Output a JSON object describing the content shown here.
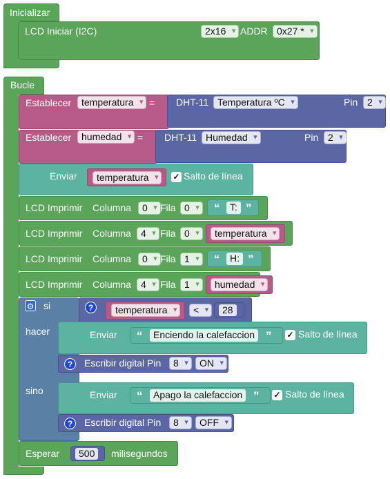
{
  "init": {
    "label": "Inicializar"
  },
  "lcd_init": {
    "label": "LCD Iniciar (I2C)",
    "size": "2x16",
    "addr_label": "ADDR",
    "addr": "0x27 *"
  },
  "loop": {
    "label": "Bucle"
  },
  "set_temp": {
    "label": "Establecer",
    "var": "temperatura",
    "eq": "=",
    "sensor": "DHT-11",
    "mode": "Temperatura ºC",
    "pin_label": "Pin",
    "pin": "2"
  },
  "set_hum": {
    "label": "Establecer",
    "var": "humedad",
    "eq": "=",
    "sensor": "DHT-11",
    "mode": "Humedad",
    "pin_label": "Pin",
    "pin": "2"
  },
  "send1": {
    "label": "Enviar",
    "var": "temperatura",
    "newline_label": "Salto de línea",
    "check": "✓"
  },
  "lcd_prints": [
    {
      "label": "LCD Imprimir",
      "col_label": "Columna",
      "col": "0",
      "row_label": "Fila",
      "row": "0",
      "text": "T:"
    },
    {
      "label": "LCD Imprimir",
      "col_label": "Columna",
      "col": "4",
      "row_label": "Fila",
      "row": "0",
      "var": "temperatura"
    },
    {
      "label": "LCD Imprimir",
      "col_label": "Columna",
      "col": "0",
      "row_label": "Fila",
      "row": "1",
      "text": "H:"
    },
    {
      "label": "LCD Imprimir",
      "col_label": "Columna",
      "col": "4",
      "row_label": "Fila",
      "row": "1",
      "var": "humedad"
    }
  ],
  "if_block": {
    "si": "si",
    "hacer": "hacer",
    "sino": "sino",
    "cond_var": "temperatura",
    "op": "<",
    "value": "28",
    "send_then": {
      "label": "Enviar",
      "text": "Enciendo la calefaccion",
      "newline_label": "Salto de línea"
    },
    "write_then": {
      "label": "Escribir digital Pin",
      "pin": "8",
      "state": "ON"
    },
    "send_else": {
      "label": "Enviar",
      "text": "Apago la calefaccion",
      "newline_label": "Salto de línea"
    },
    "write_else": {
      "label": "Escribir digital Pin",
      "pin": "8",
      "state": "OFF"
    }
  },
  "wait": {
    "label": "Esperar",
    "value": "500",
    "unit": "milisegundos"
  },
  "quote_open": "“",
  "quote_close": "”",
  "help": "?",
  "gear": "⚙"
}
